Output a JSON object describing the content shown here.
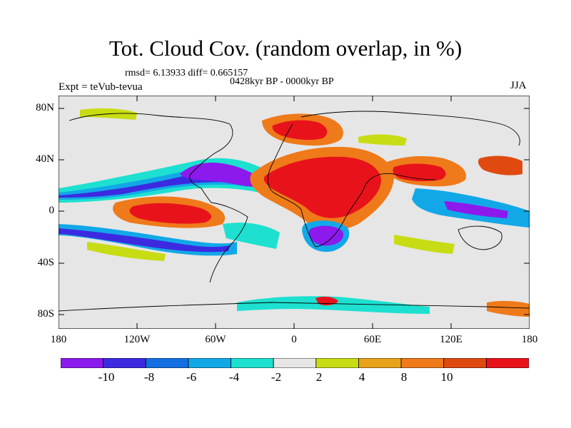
{
  "title": "Tot. Cloud Cov. (random overlap, in %)",
  "stats_text": "rmsd= 6.13933 diff= 0.665157",
  "period_text": "0428kyr BP - 0000kyr BP",
  "expt_text": "Expt = teVub-tevua",
  "season_text": "JJA",
  "lat_labels": [
    "80N",
    "40N",
    "0",
    "40S",
    "80S"
  ],
  "lon_labels": [
    "180",
    "120W",
    "60W",
    "0",
    "60E",
    "120E",
    "180"
  ],
  "colorbar": {
    "labels": [
      "-10",
      "-8",
      "-6",
      "-4",
      "-2",
      "2",
      "4",
      "8",
      "10"
    ],
    "colors": [
      "#8c1aed",
      "#3c2ae0",
      "#1470e0",
      "#12a8e8",
      "#1ee0d0",
      "#e6e6e6",
      "#c8dc14",
      "#e8a21c",
      "#ef7a1a",
      "#e04a10",
      "#e8131a"
    ]
  },
  "map": {
    "background": "#e6e6e6",
    "land_outline": "#000000"
  }
}
